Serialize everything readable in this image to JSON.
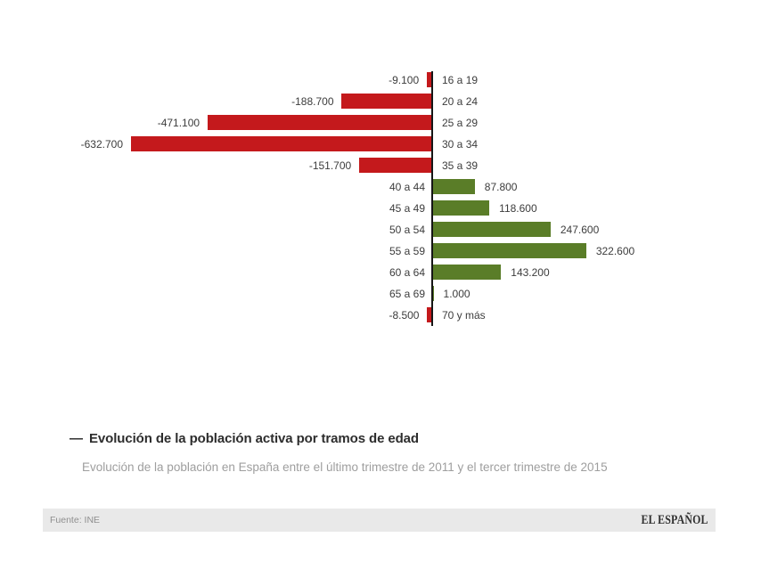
{
  "chart_data": {
    "type": "bar",
    "orientation": "horizontal",
    "diverging": true,
    "title": "Evolución de la población activa por tramos de edad",
    "subtitle": "Evolución de la población en España entre el último trimestre de 2011 y el tercer trimestre de 2015",
    "source": "Fuente: INE",
    "xlabel": "",
    "ylabel": "",
    "xlim": [
      -700000,
      400000
    ],
    "grid": false,
    "legend": false,
    "negative_color": "#c4191c",
    "positive_color": "#5a7d28",
    "axis_color": "#161616",
    "categories": [
      "16 a 19",
      "20 a 24",
      "25 a 29",
      "30 a 34",
      "35 a 39",
      "40 a 44",
      "45 a 49",
      "50 a 54",
      "55 a 59",
      "60 a 64",
      "65 a 69",
      "70 y más"
    ],
    "values": [
      -9100,
      -188700,
      -471100,
      -632700,
      -151700,
      87800,
      118600,
      247600,
      322600,
      143200,
      1000,
      -8500
    ],
    "value_labels": [
      "-9.100",
      "-188.700",
      "-471.100",
      "-632.700",
      "-151.700",
      "87.800",
      "118.600",
      "247.600",
      "322.600",
      "143.200",
      "1.000",
      "-8.500"
    ]
  },
  "header": {
    "dash": "—"
  },
  "footer": {
    "brand": "EL ESPAÑOL"
  }
}
